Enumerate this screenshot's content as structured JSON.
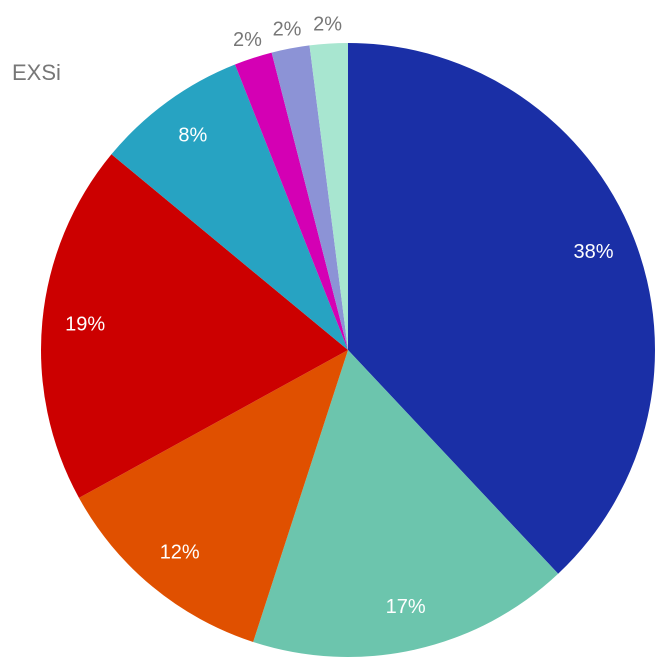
{
  "chart_data": {
    "type": "pie",
    "title": "EXSi",
    "values": [
      38,
      17,
      12,
      19,
      8,
      2,
      2,
      2
    ],
    "value_labels": [
      "38%",
      "17%",
      "12%",
      "19%",
      "8%",
      "2%",
      "2%",
      "2%"
    ],
    "colors": [
      "#1a2fa6",
      "#6cc5ad",
      "#e05000",
      "#cc0000",
      "#27a3c2",
      "#d400b4",
      "#8c93d6",
      "#a8e6d0"
    ]
  }
}
